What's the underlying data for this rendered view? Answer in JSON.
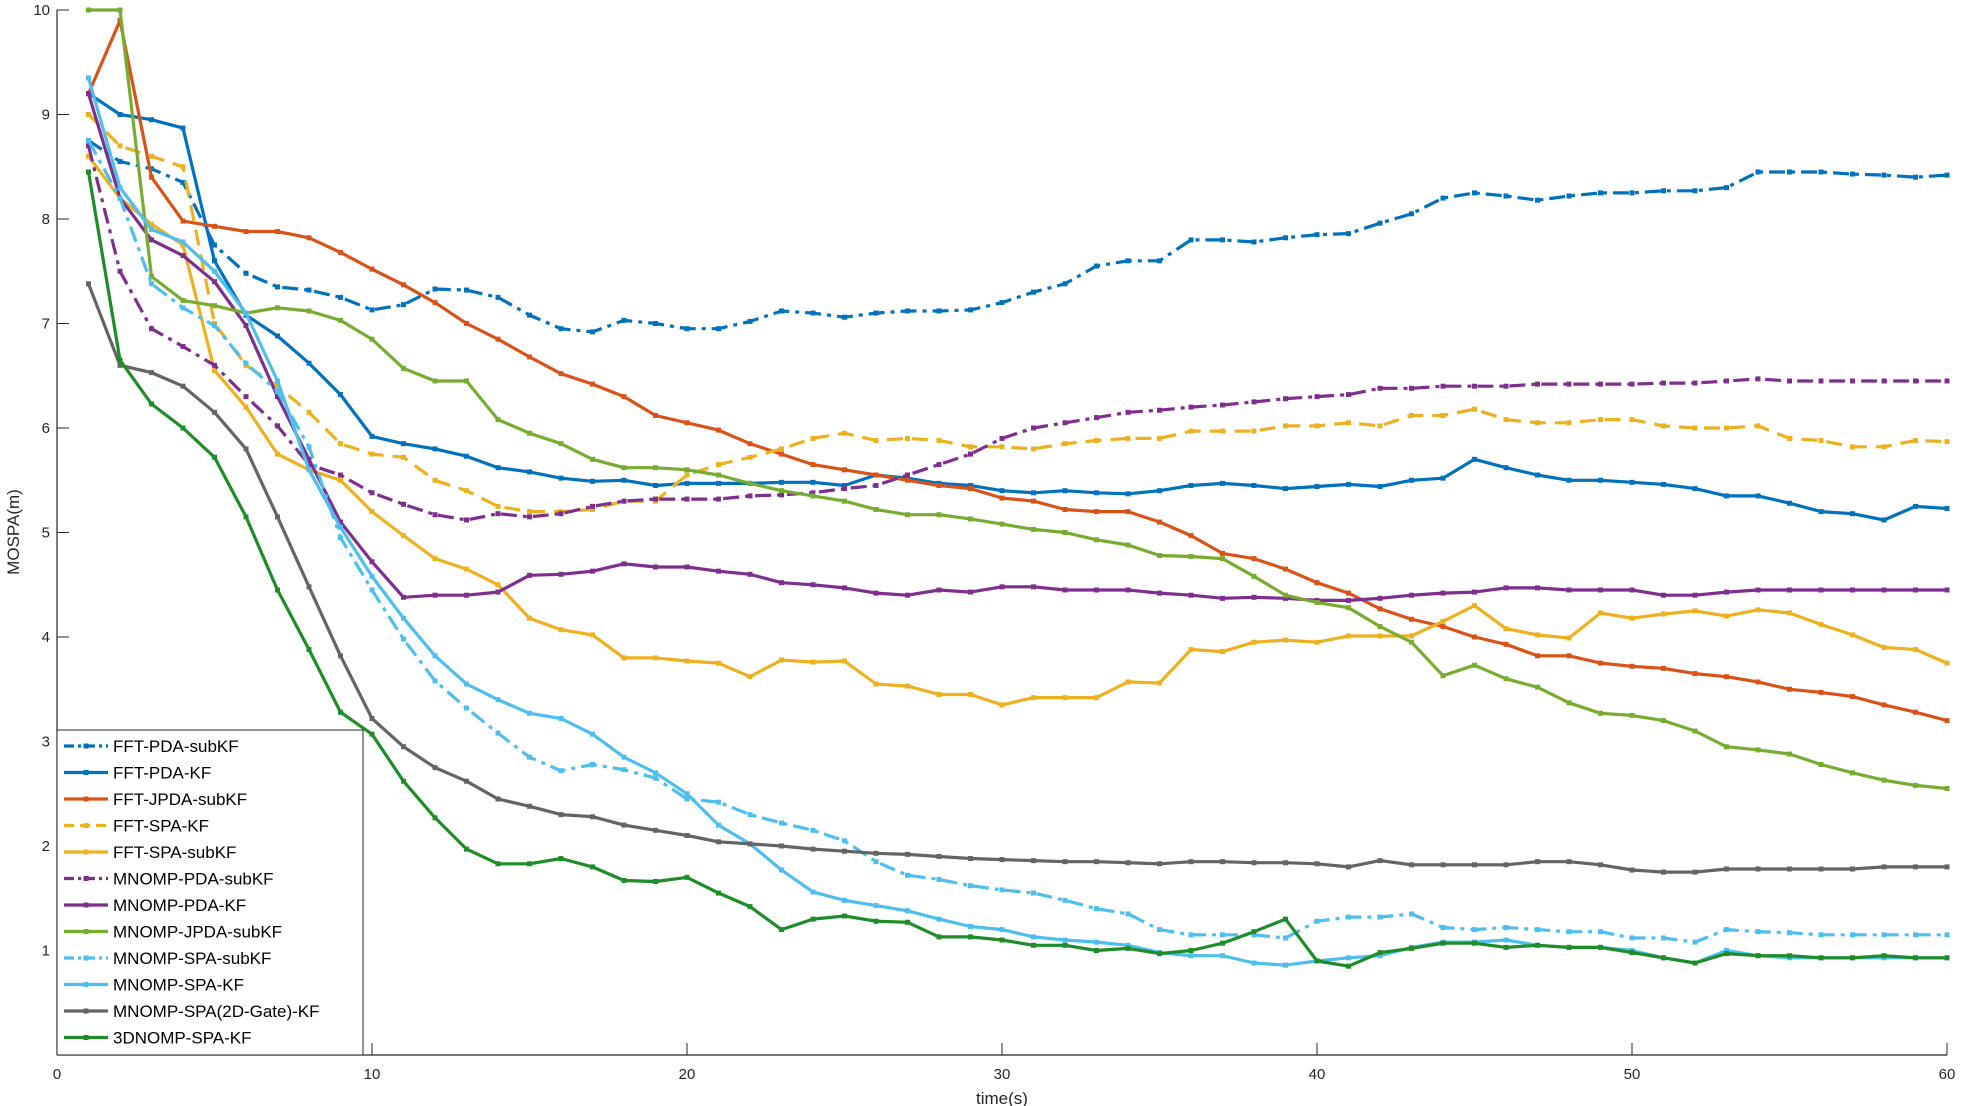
{
  "chart_data": {
    "type": "line",
    "title": "",
    "xlabel": "time(s)",
    "ylabel": "MOSPA(m)",
    "xlim": [
      0,
      60
    ],
    "ylim": [
      0,
      10
    ],
    "xticks": [
      "0",
      "10",
      "20",
      "30",
      "40",
      "50",
      "60"
    ],
    "yticks": [
      "1",
      "2",
      "3",
      "4",
      "5",
      "6",
      "7",
      "8",
      "9",
      "10"
    ],
    "grid": false,
    "legend_position": "bottom-left",
    "x": [
      1,
      2,
      3,
      4,
      5,
      6,
      7,
      8,
      9,
      10,
      11,
      12,
      13,
      14,
      15,
      16,
      17,
      18,
      19,
      20,
      21,
      22,
      23,
      24,
      25,
      26,
      27,
      28,
      29,
      30,
      31,
      32,
      33,
      34,
      35,
      36,
      37,
      38,
      39,
      40,
      41,
      42,
      43,
      44,
      45,
      46,
      47,
      48,
      49,
      50,
      51,
      52,
      53,
      54,
      55,
      56,
      57,
      58,
      59,
      60
    ],
    "series": [
      {
        "name": "FFT-PDA-subKF",
        "color": "#0072BD",
        "dash": "dashdot",
        "values": [
          8.75,
          8.55,
          8.48,
          8.35,
          7.75,
          7.48,
          7.35,
          7.32,
          7.25,
          7.13,
          7.18,
          7.33,
          7.32,
          7.25,
          7.08,
          6.95,
          6.92,
          7.03,
          7.0,
          6.95,
          6.95,
          7.02,
          7.12,
          7.1,
          7.06,
          7.1,
          7.12,
          7.12,
          7.13,
          7.2,
          7.3,
          7.38,
          7.55,
          7.6,
          7.6,
          7.8,
          7.8,
          7.78,
          7.82,
          7.85,
          7.86,
          7.96,
          8.05,
          8.2,
          8.25,
          8.22,
          8.18,
          8.22,
          8.25,
          8.25,
          8.27,
          8.27,
          8.3,
          8.45,
          8.45,
          8.45,
          8.43,
          8.42,
          8.4,
          8.42
        ]
      },
      {
        "name": "FFT-PDA-KF",
        "color": "#0072BD",
        "dash": "solid",
        "values": [
          9.2,
          9.0,
          8.95,
          8.87,
          7.6,
          7.08,
          6.88,
          6.62,
          6.32,
          5.92,
          5.85,
          5.8,
          5.73,
          5.62,
          5.58,
          5.52,
          5.49,
          5.5,
          5.45,
          5.47,
          5.47,
          5.47,
          5.48,
          5.48,
          5.45,
          5.55,
          5.52,
          5.47,
          5.45,
          5.4,
          5.38,
          5.4,
          5.38,
          5.37,
          5.4,
          5.45,
          5.47,
          5.45,
          5.42,
          5.44,
          5.46,
          5.44,
          5.5,
          5.52,
          5.7,
          5.62,
          5.55,
          5.5,
          5.5,
          5.48,
          5.46,
          5.42,
          5.35,
          5.35,
          5.28,
          5.2,
          5.18,
          5.12,
          5.25,
          5.23
        ]
      },
      {
        "name": "FFT-JPDA-subKF",
        "color": "#D95319",
        "dash": "solid",
        "values": [
          9.2,
          9.9,
          8.4,
          7.98,
          7.93,
          7.88,
          7.88,
          7.82,
          7.68,
          7.52,
          7.37,
          7.2,
          7.0,
          6.85,
          6.68,
          6.52,
          6.42,
          6.3,
          6.12,
          6.05,
          5.98,
          5.85,
          5.75,
          5.65,
          5.6,
          5.55,
          5.5,
          5.45,
          5.42,
          5.33,
          5.3,
          5.22,
          5.2,
          5.2,
          5.1,
          4.97,
          4.8,
          4.75,
          4.65,
          4.52,
          4.42,
          4.27,
          4.17,
          4.1,
          4.0,
          3.93,
          3.82,
          3.82,
          3.75,
          3.72,
          3.7,
          3.65,
          3.62,
          3.57,
          3.5,
          3.47,
          3.43,
          3.35,
          3.28,
          3.2
        ]
      },
      {
        "name": "FFT-SPA-KF",
        "color": "#EDB120",
        "dash": "dash",
        "values": [
          9.0,
          8.7,
          8.6,
          8.5,
          7.0,
          6.6,
          6.4,
          6.15,
          5.85,
          5.75,
          5.72,
          5.5,
          5.4,
          5.25,
          5.2,
          5.2,
          5.22,
          5.3,
          5.3,
          5.55,
          5.65,
          5.72,
          5.8,
          5.9,
          5.95,
          5.88,
          5.9,
          5.88,
          5.82,
          5.82,
          5.8,
          5.85,
          5.88,
          5.9,
          5.9,
          5.97,
          5.97,
          5.97,
          6.02,
          6.02,
          6.05,
          6.02,
          6.12,
          6.12,
          6.18,
          6.08,
          6.05,
          6.05,
          6.08,
          6.08,
          6.02,
          6.0,
          6.0,
          6.02,
          5.9,
          5.88,
          5.82,
          5.82,
          5.88,
          5.87
        ]
      },
      {
        "name": "FFT-SPA-subKF",
        "color": "#EDB120",
        "dash": "solid",
        "values": [
          8.6,
          8.2,
          7.95,
          7.75,
          6.55,
          6.2,
          5.75,
          5.6,
          5.5,
          5.2,
          4.97,
          4.75,
          4.65,
          4.5,
          4.18,
          4.07,
          4.02,
          3.8,
          3.8,
          3.77,
          3.75,
          3.62,
          3.78,
          3.76,
          3.77,
          3.55,
          3.53,
          3.45,
          3.45,
          3.35,
          3.42,
          3.42,
          3.42,
          3.57,
          3.56,
          3.88,
          3.86,
          3.95,
          3.97,
          3.95,
          4.01,
          4.01,
          4.01,
          4.15,
          4.3,
          4.08,
          4.02,
          3.99,
          4.23,
          4.18,
          4.22,
          4.25,
          4.2,
          4.26,
          4.23,
          4.12,
          4.02,
          3.9,
          3.88,
          3.75
        ]
      },
      {
        "name": "MNOMP-PDA-subKF",
        "color": "#7E2F8E",
        "dash": "dashdot",
        "values": [
          8.7,
          7.5,
          6.95,
          6.78,
          6.6,
          6.3,
          6.02,
          5.65,
          5.55,
          5.38,
          5.27,
          5.17,
          5.12,
          5.18,
          5.15,
          5.18,
          5.25,
          5.3,
          5.32,
          5.32,
          5.32,
          5.35,
          5.36,
          5.38,
          5.42,
          5.45,
          5.55,
          5.65,
          5.75,
          5.9,
          6.0,
          6.05,
          6.1,
          6.15,
          6.17,
          6.2,
          6.22,
          6.25,
          6.28,
          6.3,
          6.32,
          6.38,
          6.38,
          6.4,
          6.4,
          6.4,
          6.42,
          6.42,
          6.42,
          6.42,
          6.43,
          6.43,
          6.45,
          6.47,
          6.45,
          6.45,
          6.45,
          6.45,
          6.45,
          6.45
        ]
      },
      {
        "name": "MNOMP-PDA-KF",
        "color": "#7E2F8E",
        "dash": "solid",
        "values": [
          9.2,
          8.2,
          7.8,
          7.65,
          7.4,
          6.98,
          6.3,
          5.7,
          5.1,
          4.72,
          4.38,
          4.4,
          4.4,
          4.43,
          4.59,
          4.6,
          4.63,
          4.7,
          4.67,
          4.67,
          4.63,
          4.6,
          4.52,
          4.5,
          4.47,
          4.42,
          4.4,
          4.45,
          4.43,
          4.48,
          4.48,
          4.45,
          4.45,
          4.45,
          4.42,
          4.4,
          4.37,
          4.38,
          4.37,
          4.35,
          4.35,
          4.37,
          4.4,
          4.42,
          4.43,
          4.47,
          4.47,
          4.45,
          4.45,
          4.45,
          4.4,
          4.4,
          4.43,
          4.45,
          4.45,
          4.45,
          4.45,
          4.45,
          4.45,
          4.45
        ]
      },
      {
        "name": "MNOMP-JPDA-subKF",
        "color": "#77AC30",
        "dash": "solid",
        "values": [
          10.0,
          10.0,
          7.45,
          7.22,
          7.17,
          7.1,
          7.15,
          7.12,
          7.03,
          6.85,
          6.57,
          6.45,
          6.45,
          6.08,
          5.95,
          5.85,
          5.7,
          5.62,
          5.62,
          5.6,
          5.55,
          5.47,
          5.4,
          5.35,
          5.3,
          5.22,
          5.17,
          5.17,
          5.13,
          5.08,
          5.03,
          5.0,
          4.93,
          4.88,
          4.78,
          4.77,
          4.75,
          4.58,
          4.4,
          4.33,
          4.28,
          4.1,
          3.95,
          3.63,
          3.73,
          3.6,
          3.52,
          3.37,
          3.27,
          3.25,
          3.2,
          3.1,
          2.95,
          2.92,
          2.88,
          2.78,
          2.7,
          2.63,
          2.58,
          2.55
        ]
      },
      {
        "name": "MNOMP-SPA-subKF",
        "color": "#4DBEEE",
        "dash": "dashdot",
        "values": [
          8.75,
          8.2,
          7.38,
          7.15,
          6.98,
          6.62,
          6.35,
          5.82,
          4.95,
          4.45,
          3.98,
          3.58,
          3.32,
          3.08,
          2.85,
          2.72,
          2.78,
          2.73,
          2.65,
          2.45,
          2.42,
          2.3,
          2.22,
          2.15,
          2.05,
          1.85,
          1.72,
          1.68,
          1.62,
          1.58,
          1.55,
          1.48,
          1.4,
          1.35,
          1.2,
          1.15,
          1.15,
          1.15,
          1.12,
          1.28,
          1.32,
          1.32,
          1.35,
          1.22,
          1.2,
          1.22,
          1.2,
          1.18,
          1.18,
          1.12,
          1.12,
          1.08,
          1.2,
          1.18,
          1.17,
          1.15,
          1.15,
          1.15,
          1.15,
          1.15
        ]
      },
      {
        "name": "MNOMP-SPA-KF",
        "color": "#4DBEEE",
        "dash": "solid",
        "values": [
          9.35,
          8.3,
          7.9,
          7.78,
          7.5,
          7.1,
          6.45,
          5.6,
          5.05,
          4.58,
          4.18,
          3.82,
          3.55,
          3.4,
          3.27,
          3.22,
          3.07,
          2.85,
          2.7,
          2.5,
          2.2,
          2.02,
          1.77,
          1.56,
          1.48,
          1.43,
          1.38,
          1.3,
          1.23,
          1.2,
          1.13,
          1.1,
          1.08,
          1.05,
          0.98,
          0.95,
          0.95,
          0.88,
          0.86,
          0.9,
          0.93,
          0.95,
          1.03,
          1.08,
          1.08,
          1.1,
          1.05,
          1.03,
          1.03,
          1.0,
          0.93,
          0.88,
          1.0,
          0.95,
          0.93,
          0.93,
          0.93,
          0.93,
          0.93,
          0.93
        ]
      },
      {
        "name": "MNOMP-SPA(2D-Gate)-KF",
        "color": "#646464",
        "dash": "solid",
        "values": [
          7.38,
          6.6,
          6.53,
          6.4,
          6.15,
          5.8,
          5.15,
          4.48,
          3.82,
          3.22,
          2.95,
          2.75,
          2.62,
          2.45,
          2.38,
          2.3,
          2.28,
          2.2,
          2.15,
          2.1,
          2.04,
          2.02,
          2.0,
          1.97,
          1.95,
          1.93,
          1.92,
          1.9,
          1.88,
          1.87,
          1.86,
          1.85,
          1.85,
          1.84,
          1.83,
          1.85,
          1.85,
          1.84,
          1.84,
          1.83,
          1.8,
          1.86,
          1.82,
          1.82,
          1.82,
          1.82,
          1.85,
          1.85,
          1.82,
          1.77,
          1.75,
          1.75,
          1.78,
          1.78,
          1.78,
          1.78,
          1.78,
          1.8,
          1.8,
          1.8
        ]
      },
      {
        "name": "3DNOMP-SPA-KF",
        "color": "#1E8C28",
        "dash": "solid",
        "values": [
          8.45,
          6.65,
          6.23,
          6.0,
          5.72,
          5.15,
          4.45,
          3.88,
          3.28,
          3.07,
          2.62,
          2.27,
          1.97,
          1.83,
          1.83,
          1.88,
          1.8,
          1.67,
          1.66,
          1.7,
          1.55,
          1.42,
          1.2,
          1.3,
          1.33,
          1.28,
          1.27,
          1.13,
          1.13,
          1.1,
          1.05,
          1.05,
          1.0,
          1.02,
          0.97,
          1.0,
          1.07,
          1.18,
          1.3,
          0.9,
          0.85,
          0.98,
          1.02,
          1.07,
          1.07,
          1.03,
          1.05,
          1.03,
          1.03,
          0.98,
          0.93,
          0.88,
          0.97,
          0.95,
          0.95,
          0.93,
          0.93,
          0.95,
          0.93,
          0.93
        ]
      }
    ]
  }
}
